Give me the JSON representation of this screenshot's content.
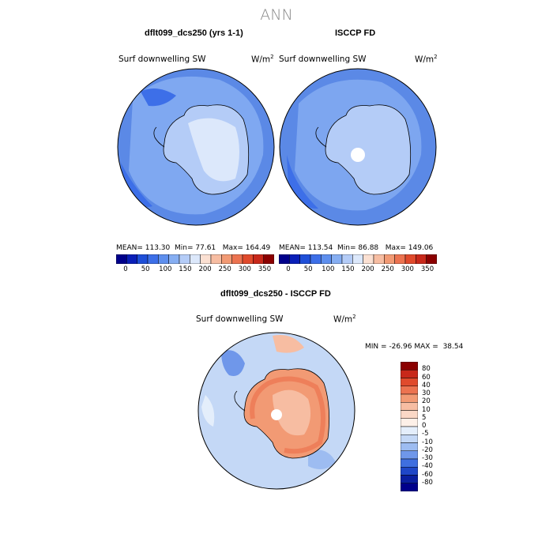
{
  "page": {
    "title": "ANN"
  },
  "panel_left": {
    "title": "dflt099_dcs250 (yrs 1-1)",
    "variable": "Surf downwelling SW",
    "units": "W/m",
    "units_sup": "2",
    "stats": {
      "mean_label": "MEAN=",
      "mean": "113.30",
      "min_label": "Min=",
      "min": "77.61",
      "max_label": "Max=",
      "max": "164.49"
    }
  },
  "panel_right": {
    "title": "ISCCP FD",
    "variable": "Surf downwelling SW",
    "units": "W/m",
    "units_sup": "2",
    "stats": {
      "mean_label": "MEAN=",
      "mean": "113.54",
      "min_label": "Min=",
      "min": "86.88",
      "max_label": "Max=",
      "max": "149.06"
    }
  },
  "colorbar_top": {
    "labels": [
      "0",
      "50",
      "100",
      "150",
      "200",
      "250",
      "300",
      "350"
    ],
    "colors": [
      "#00008b",
      "#0a1fb8",
      "#1f4fd8",
      "#3d6fe8",
      "#5e8fee",
      "#86aef2",
      "#b4ccf7",
      "#dce8fb",
      "#fbe0d2",
      "#f7bda2",
      "#f29a74",
      "#ec7350",
      "#e04a2c",
      "#c8281a",
      "#8b0000"
    ]
  },
  "panel_diff": {
    "title": "dflt099_dcs250 - ISCCP FD",
    "variable": "Surf downwelling SW",
    "units": "W/m",
    "units_sup": "2",
    "minmax": {
      "min_label": "MIN =",
      "min": "-26.96",
      "max_label": "MAX =",
      "max": "38.54"
    }
  },
  "colorbar_diff": {
    "labels": [
      "80",
      "60",
      "40",
      "30",
      "20",
      "10",
      "5",
      "0",
      "-5",
      "-10",
      "-20",
      "-30",
      "-40",
      "-60",
      "-80"
    ],
    "colors": [
      "#8b0000",
      "#c8281a",
      "#e04a2c",
      "#ec7350",
      "#f29a74",
      "#f7bda2",
      "#fbd8c6",
      "#fdf0e8",
      "#e4eefb",
      "#c4d8f6",
      "#9dbcf1",
      "#6f97ea",
      "#3f6fe0",
      "#1f47c8",
      "#0a1fa0",
      "#00008b"
    ]
  },
  "map_colors": {
    "ocean_left": "#5b89e6",
    "ocean_left_light": "#86aef2",
    "land_left": "#b4ccf7",
    "plateau_left": "#dce8fb",
    "ocean_right": "#5b89e6",
    "land_right": "#b4ccf7",
    "diff_land": "#f29a74",
    "diff_core": "#f7bda2",
    "diff_coast": "#ec7350",
    "diff_ocean": "#c4d8f6",
    "diff_ocean_dark": "#6f97ea"
  }
}
